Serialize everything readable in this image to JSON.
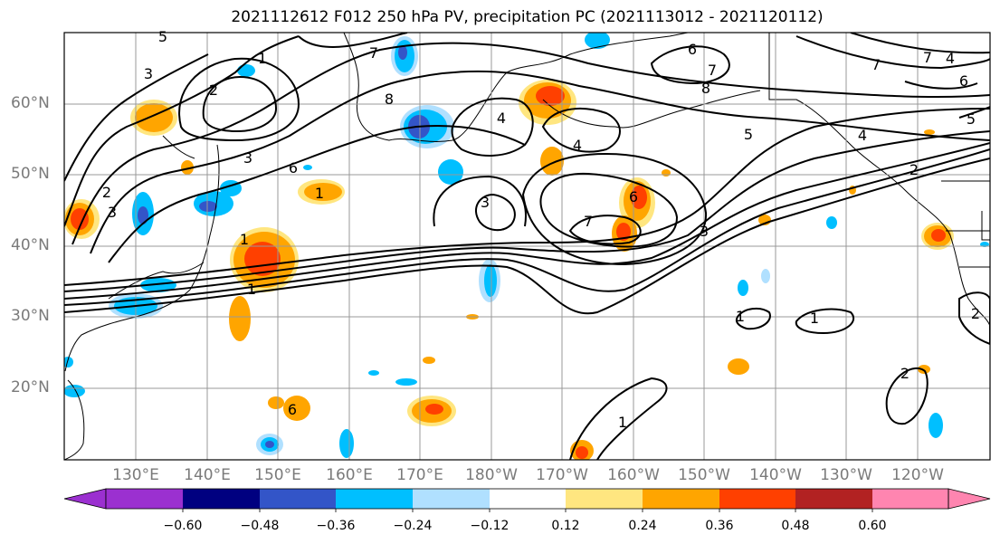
{
  "title": "2021112612 F012 250 hPa PV, precipitation PC (2021113012 - 2021120112)",
  "lat_labels": [
    "60°N",
    "50°N",
    "40°N",
    "30°N",
    "20°N"
  ],
  "lon_labels": [
    "130°E",
    "140°E",
    "150°E",
    "160°E",
    "170°E",
    "180°W",
    "170°W",
    "160°W",
    "150°W",
    "140°W",
    "130°W",
    "120°W"
  ],
  "colorbar": {
    "ticks": [
      "−0.60",
      "−0.48",
      "−0.36",
      "−0.24",
      "−0.12",
      "0.12",
      "0.24",
      "0.36",
      "0.48",
      "0.60"
    ],
    "colors": [
      "#9b30d0",
      "#000080",
      "#3355c8",
      "#00bfff",
      "#b0e0ff",
      "#ffffff",
      "#ffe680",
      "#ffa500",
      "#ff4000",
      "#b22222",
      "#ff85b0"
    ]
  },
  "contour_labels": [
    "5",
    "3",
    "1",
    "2",
    "7",
    "8",
    "6",
    "7",
    "8",
    "4",
    "5",
    "4",
    "6",
    "3",
    "2",
    "3",
    "6",
    "7",
    "3",
    "1",
    "1",
    "1",
    "3",
    "5",
    "4",
    "2",
    "7",
    "6",
    "1",
    "1",
    "2",
    "6",
    "1",
    "2",
    "4",
    "7"
  ],
  "colors": {
    "contour": "#000000",
    "grid": "#999999",
    "coast": "#000000"
  }
}
